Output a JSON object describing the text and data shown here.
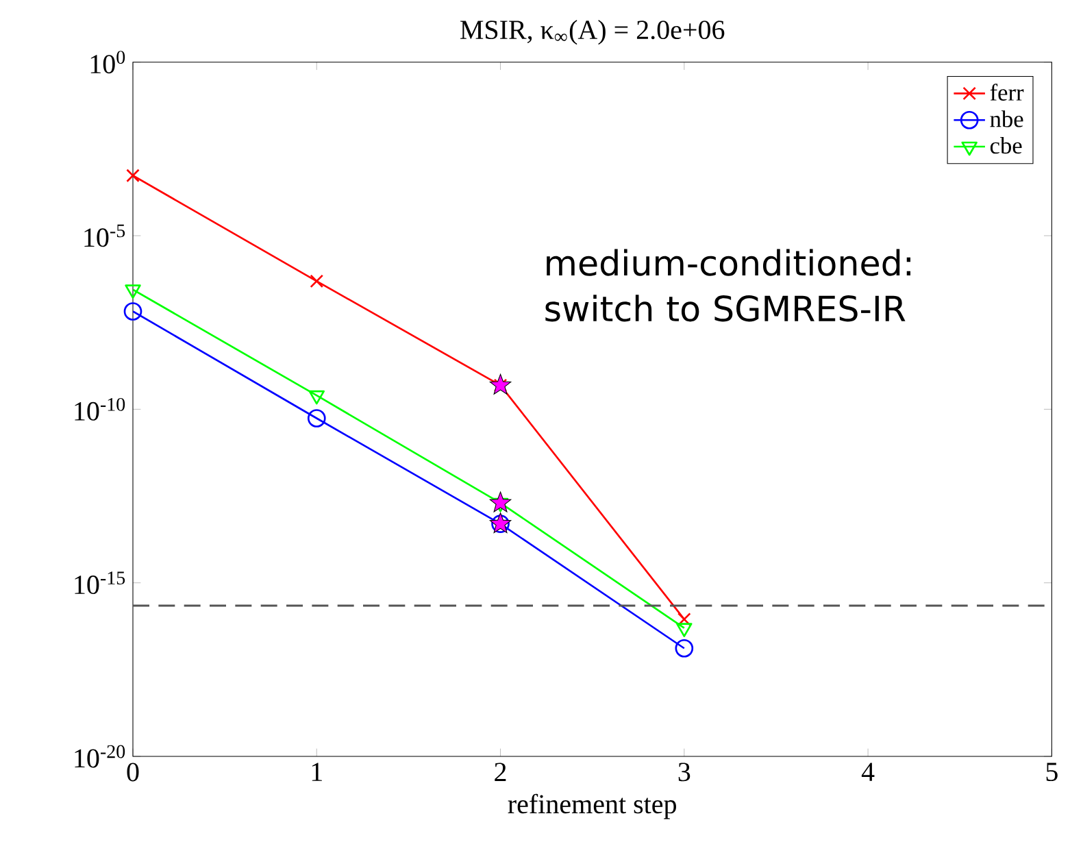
{
  "chart_data": {
    "type": "line",
    "title": "MSIR,  κ$_{∞}$(A) = 2.0e+06",
    "xlabel": "refinement step",
    "x": [
      0,
      1,
      2,
      3
    ],
    "series": [
      {
        "name": "ferr",
        "color": "#ff0000",
        "marker": "cross",
        "values": [
          0.00054,
          4.9e-07,
          4.9e-10,
          8.9e-17
        ]
      },
      {
        "name": "nbe",
        "color": "#0000ff",
        "marker": "circle",
        "values": [
          6.6e-08,
          5.5e-11,
          5e-14,
          1.3e-17
        ]
      },
      {
        "name": "cbe",
        "color": "#00ff00",
        "marker": "triangle",
        "values": [
          2.8e-07,
          2.5e-10,
          2e-13,
          5e-17
        ]
      },
      {
        "type": "scatter",
        "color": "#ff00ff",
        "marker": "star",
        "values": [
          null,
          null,
          4.9e-10,
          null
        ]
      },
      {
        "type": "scatter",
        "color": "#ff00ff",
        "marker": "star",
        "values": [
          null,
          null,
          2e-13,
          null
        ]
      },
      {
        "type": "scatter",
        "color": "#ff00ff",
        "marker": "star",
        "values": [
          null,
          null,
          5e-14,
          null
        ]
      }
    ],
    "log": "y",
    "xlim": [
      0,
      5
    ],
    "ylim": [
      1e-20,
      1
    ],
    "xticks": [
      0,
      1,
      2,
      3,
      4,
      5
    ],
    "yticks": [
      {
        "value": 1e-20,
        "label": "10$^{-20}$"
      },
      {
        "value": 1e-15,
        "label": "10$^{-15}$"
      },
      {
        "value": 1e-10,
        "label": "10$^{-10}$"
      },
      {
        "value": 1e-05,
        "label": "10$^{-5}$"
      },
      {
        "value": 1,
        "label": "10$^{0}$"
      }
    ],
    "ref_lines": [
      {
        "axis": "y",
        "value": 2.2e-16,
        "color": "#555555",
        "line_style": "dashed"
      }
    ],
    "annotations": [
      "medium-conditioned: switch to SGMRES-IR"
    ],
    "legend": "top right"
  }
}
